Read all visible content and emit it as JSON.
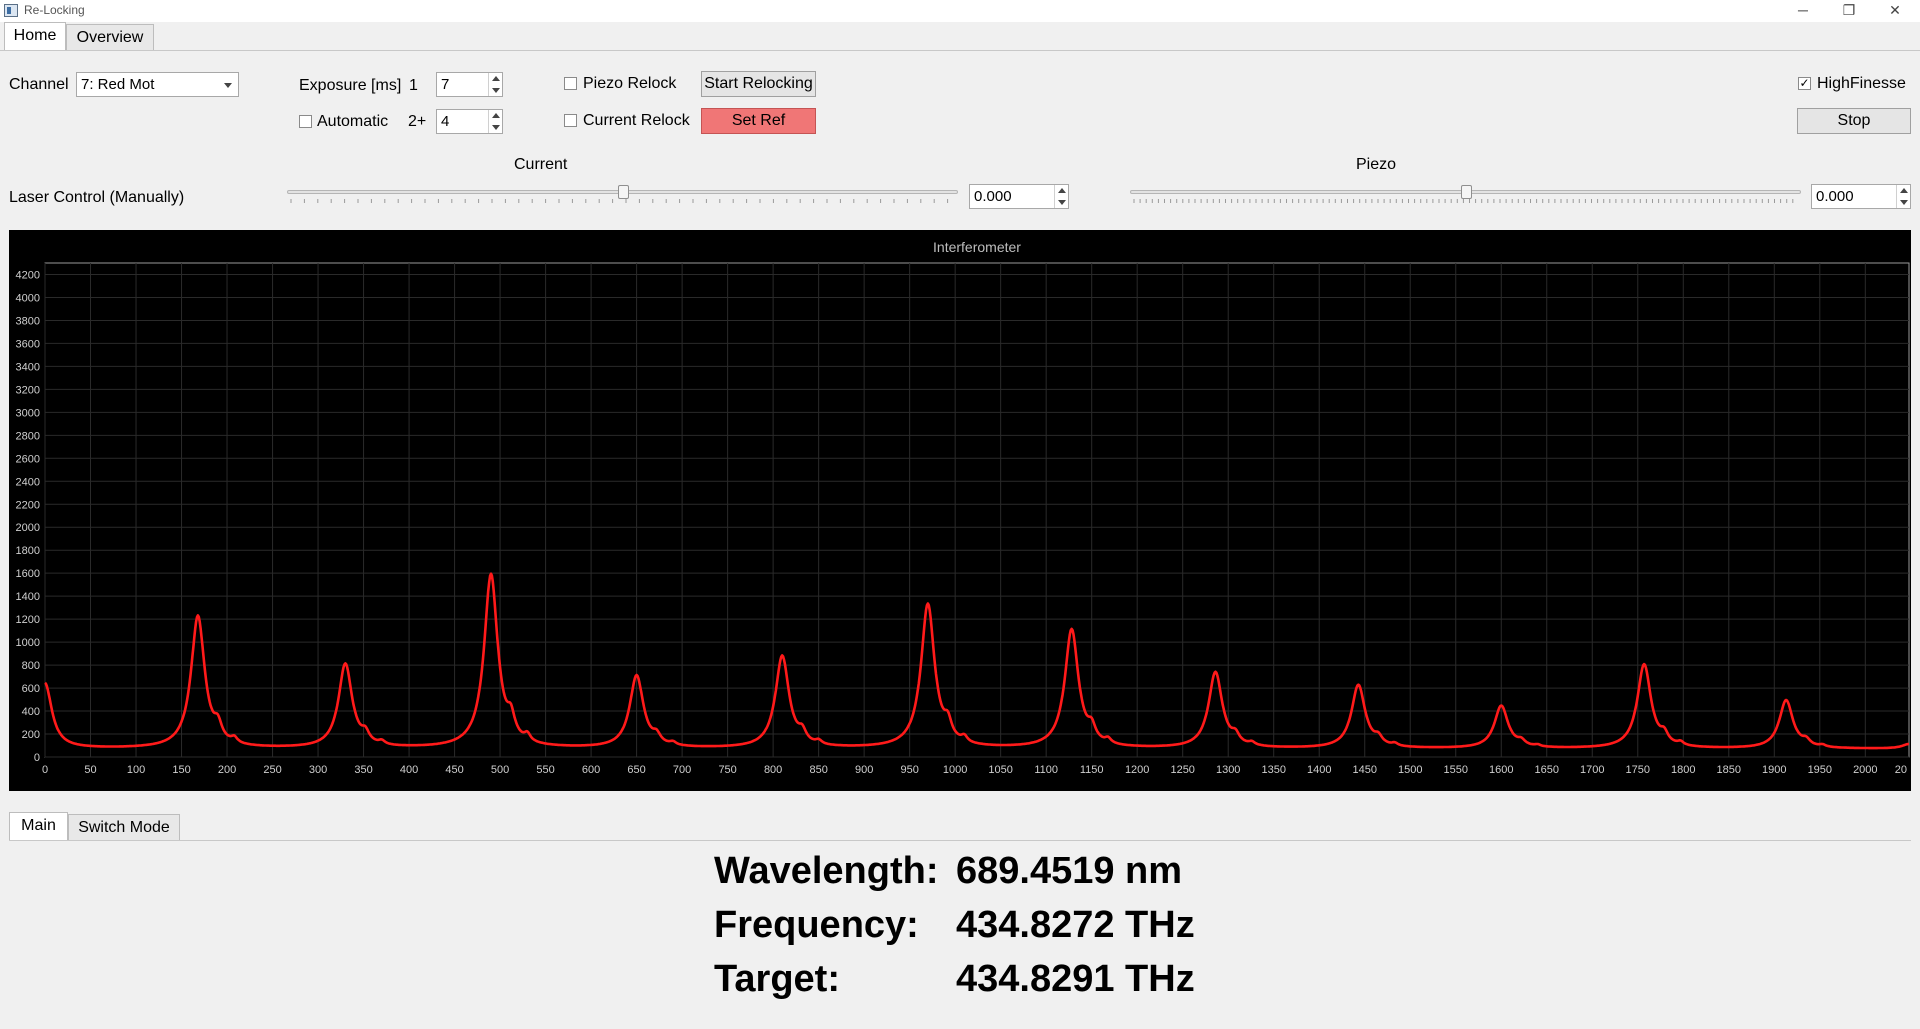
{
  "window": {
    "title": "Re-Locking",
    "minimize_glyph": "─",
    "restore_glyph": "❐",
    "close_glyph": "✕"
  },
  "tabs": [
    {
      "label": "Home"
    },
    {
      "label": "Overview"
    }
  ],
  "controls": {
    "channel_label": "Channel",
    "channel_value": "7: Red Mot",
    "exposure_label": "Exposure [ms]",
    "exposure1_label": "1",
    "exposure1_value": "7",
    "automatic_label": "Automatic",
    "exposure2_label": "2+",
    "exposure2_value": "4",
    "piezo_relock_label": "Piezo Relock",
    "current_relock_label": "Current Relock",
    "start_relocking_label": "Start Relocking",
    "set_ref_label": "Set Ref",
    "highfinesse_label": "HighFinesse",
    "highfinesse_checked": "✓",
    "stop_label": "Stop",
    "current_label": "Current",
    "piezo_label": "Piezo",
    "laser_control_label": "Laser Control (Manually)",
    "current_value": "0.000",
    "piezo_value": "0.000",
    "current_slider_level": 0.5,
    "piezo_slider_level": 0.5
  },
  "bottom_tabs": [
    {
      "label": "Main"
    },
    {
      "label": "Switch Mode"
    }
  ],
  "readout": {
    "wavelength_label": "Wavelength:",
    "wavelength_value": "689.4519 nm",
    "frequency_label": "Frequency:",
    "frequency_value": "434.8272 THz",
    "target_label": "Target:",
    "target_value": "434.8291 THz"
  },
  "colors": {
    "series": "#ff1a1a",
    "button_highlight": "#f07676",
    "chart_bg": "#000000"
  },
  "chart_data": {
    "type": "line",
    "title": "Interferometer",
    "xlabel": "",
    "ylabel": "",
    "xlim": [
      0,
      2048
    ],
    "ylim": [
      0,
      4300
    ],
    "x_ticks": [
      0,
      50,
      100,
      150,
      200,
      250,
      300,
      350,
      400,
      450,
      500,
      550,
      600,
      650,
      700,
      750,
      800,
      850,
      900,
      950,
      1000,
      1050,
      1100,
      1150,
      1200,
      1250,
      1300,
      1350,
      1400,
      1450,
      1500,
      1550,
      1600,
      1650,
      1700,
      1750,
      1800,
      1850,
      1900,
      1950,
      2000,
      "20"
    ],
    "y_ticks": [
      0,
      200,
      400,
      600,
      800,
      1000,
      1200,
      1400,
      1600,
      1800,
      2000,
      2200,
      2400,
      2600,
      2800,
      3000,
      3200,
      3400,
      3600,
      3800,
      4000,
      4200
    ],
    "grid": true,
    "baseline": 70,
    "peaks": [
      {
        "x": 0,
        "y": 640
      },
      {
        "x": 168,
        "y": 1220
      },
      {
        "x": 330,
        "y": 800
      },
      {
        "x": 490,
        "y": 1580
      },
      {
        "x": 650,
        "y": 700
      },
      {
        "x": 810,
        "y": 870
      },
      {
        "x": 970,
        "y": 1320
      },
      {
        "x": 1128,
        "y": 1100
      },
      {
        "x": 1286,
        "y": 730
      },
      {
        "x": 1443,
        "y": 620
      },
      {
        "x": 1600,
        "y": 440
      },
      {
        "x": 1757,
        "y": 800
      },
      {
        "x": 1913,
        "y": 490
      },
      {
        "x": 2048,
        "y": 110
      }
    ],
    "series": [
      {
        "values_from": "peaks"
      }
    ]
  }
}
